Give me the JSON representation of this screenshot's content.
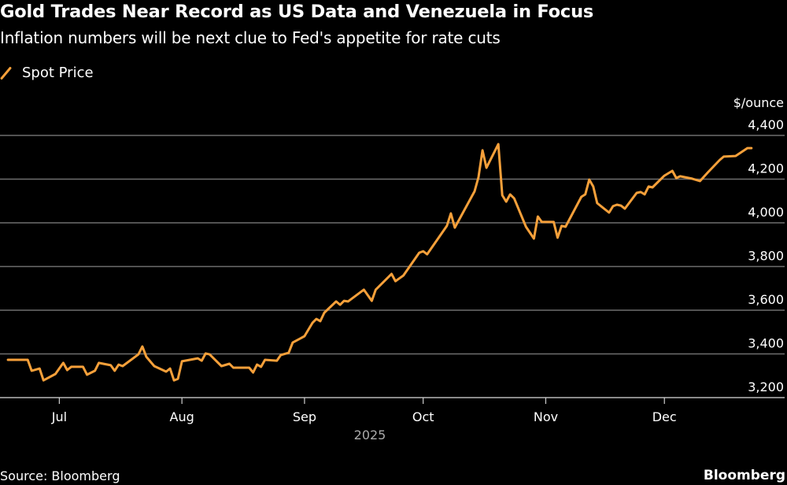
{
  "chart_data": {
    "type": "line",
    "title": "Gold Trades Near Record as US Data and Venezuela in Focus",
    "subtitle": "Inflation numbers will be next clue to Fed's appetite for rate cuts",
    "ylabel": "$/ounce",
    "xlabel": "2025",
    "ylim": [
      3200,
      4400
    ],
    "xlim": [
      "2025-06-16",
      "2026-01-01"
    ],
    "grid": true,
    "legend_position": "top-left",
    "y_ticks": [
      3200,
      3400,
      3600,
      3800,
      4000,
      4200,
      4400
    ],
    "y_tick_labels": [
      "3,200",
      "3,400",
      "3,600",
      "3,800",
      "4,000",
      "4,200",
      "4,400"
    ],
    "x_ticks": [
      {
        "date": "2025-07-01",
        "label": "Jul"
      },
      {
        "date": "2025-08-01",
        "label": "Aug"
      },
      {
        "date": "2025-09-01",
        "label": "Sep"
      },
      {
        "date": "2025-10-01",
        "label": "Oct"
      },
      {
        "date": "2025-11-01",
        "label": "Nov"
      },
      {
        "date": "2025-12-01",
        "label": "Dec"
      }
    ],
    "colors": {
      "line": "#f6a03a",
      "grid": "#6e6e6e",
      "background": "#000000"
    },
    "series": [
      {
        "name": "Spot Price",
        "points": [
          [
            "2025-06-18",
            3373
          ],
          [
            "2025-06-23",
            3373
          ],
          [
            "2025-06-24",
            3323
          ],
          [
            "2025-06-26",
            3333
          ],
          [
            "2025-06-27",
            3279
          ],
          [
            "2025-06-30",
            3308
          ],
          [
            "2025-07-02",
            3359
          ],
          [
            "2025-07-03",
            3326
          ],
          [
            "2025-07-04",
            3341
          ],
          [
            "2025-07-07",
            3341
          ],
          [
            "2025-07-08",
            3305
          ],
          [
            "2025-07-10",
            3323
          ],
          [
            "2025-07-11",
            3359
          ],
          [
            "2025-07-14",
            3348
          ],
          [
            "2025-07-15",
            3323
          ],
          [
            "2025-07-16",
            3351
          ],
          [
            "2025-07-17",
            3344
          ],
          [
            "2025-07-21",
            3398
          ],
          [
            "2025-07-22",
            3434
          ],
          [
            "2025-07-23",
            3387
          ],
          [
            "2025-07-25",
            3344
          ],
          [
            "2025-07-28",
            3319
          ],
          [
            "2025-07-29",
            3333
          ],
          [
            "2025-07-30",
            3279
          ],
          [
            "2025-07-31",
            3286
          ],
          [
            "2025-08-01",
            3366
          ],
          [
            "2025-08-05",
            3380
          ],
          [
            "2025-08-06",
            3369
          ],
          [
            "2025-08-07",
            3402
          ],
          [
            "2025-08-08",
            3398
          ],
          [
            "2025-08-11",
            3344
          ],
          [
            "2025-08-13",
            3355
          ],
          [
            "2025-08-14",
            3337
          ],
          [
            "2025-08-18",
            3337
          ],
          [
            "2025-08-19",
            3315
          ],
          [
            "2025-08-20",
            3351
          ],
          [
            "2025-08-21",
            3341
          ],
          [
            "2025-08-22",
            3373
          ],
          [
            "2025-08-25",
            3369
          ],
          [
            "2025-08-26",
            3395
          ],
          [
            "2025-08-28",
            3405
          ],
          [
            "2025-08-29",
            3452
          ],
          [
            "2025-09-01",
            3481
          ],
          [
            "2025-09-03",
            3542
          ],
          [
            "2025-09-04",
            3560
          ],
          [
            "2025-09-05",
            3550
          ],
          [
            "2025-09-06",
            3589
          ],
          [
            "2025-09-09",
            3640
          ],
          [
            "2025-09-10",
            3625
          ],
          [
            "2025-09-11",
            3643
          ],
          [
            "2025-09-12",
            3640
          ],
          [
            "2025-09-16",
            3694
          ],
          [
            "2025-09-18",
            3643
          ],
          [
            "2025-09-19",
            3694
          ],
          [
            "2025-09-23",
            3766
          ],
          [
            "2025-09-24",
            3733
          ],
          [
            "2025-09-26",
            3759
          ],
          [
            "2025-09-30",
            3863
          ],
          [
            "2025-10-01",
            3870
          ],
          [
            "2025-10-02",
            3856
          ],
          [
            "2025-10-07",
            3986
          ],
          [
            "2025-10-08",
            4043
          ],
          [
            "2025-10-09",
            3978
          ],
          [
            "2025-10-14",
            4144
          ],
          [
            "2025-10-15",
            4209
          ],
          [
            "2025-10-16",
            4332
          ],
          [
            "2025-10-17",
            4252
          ],
          [
            "2025-10-20",
            4360
          ],
          [
            "2025-10-21",
            4126
          ],
          [
            "2025-10-22",
            4097
          ],
          [
            "2025-10-23",
            4130
          ],
          [
            "2025-10-24",
            4112
          ],
          [
            "2025-10-27",
            3982
          ],
          [
            "2025-10-29",
            3928
          ],
          [
            "2025-10-30",
            4029
          ],
          [
            "2025-10-31",
            4004
          ],
          [
            "2025-11-03",
            4004
          ],
          [
            "2025-11-04",
            3932
          ],
          [
            "2025-11-05",
            3986
          ],
          [
            "2025-11-06",
            3982
          ],
          [
            "2025-11-10",
            4119
          ],
          [
            "2025-11-11",
            4130
          ],
          [
            "2025-11-12",
            4198
          ],
          [
            "2025-11-13",
            4166
          ],
          [
            "2025-11-14",
            4090
          ],
          [
            "2025-11-17",
            4047
          ],
          [
            "2025-11-18",
            4076
          ],
          [
            "2025-11-19",
            4083
          ],
          [
            "2025-11-20",
            4079
          ],
          [
            "2025-11-21",
            4065
          ],
          [
            "2025-11-24",
            4137
          ],
          [
            "2025-11-25",
            4141
          ],
          [
            "2025-11-26",
            4130
          ],
          [
            "2025-11-27",
            4166
          ],
          [
            "2025-11-28",
            4162
          ],
          [
            "2025-12-01",
            4216
          ],
          [
            "2025-12-03",
            4238
          ],
          [
            "2025-12-04",
            4205
          ],
          [
            "2025-12-05",
            4213
          ],
          [
            "2025-12-08",
            4202
          ],
          [
            "2025-12-10",
            4191
          ],
          [
            "2025-12-12",
            4231
          ],
          [
            "2025-12-15",
            4288
          ],
          [
            "2025-12-16",
            4303
          ],
          [
            "2025-12-19",
            4306
          ],
          [
            "2025-12-22",
            4342
          ],
          [
            "2025-12-23",
            4342
          ]
        ]
      }
    ]
  },
  "footer": {
    "source": "Source: Bloomberg",
    "brand": "Bloomberg"
  }
}
